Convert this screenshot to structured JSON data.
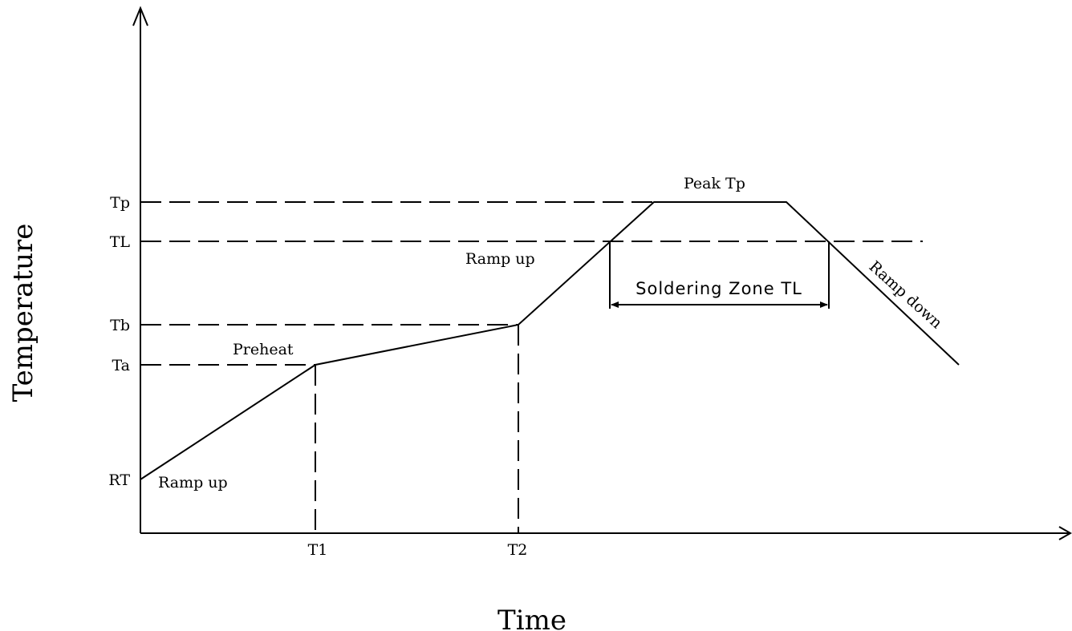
{
  "axes": {
    "y_title": "Temperature",
    "x_title": "Time"
  },
  "y_levels": [
    "Tp",
    "TL",
    "Tb",
    "Ta",
    "RT"
  ],
  "x_marks": [
    "T1",
    "T2"
  ],
  "segments": {
    "ramp_up_1": "Ramp up",
    "preheat": "Preheat",
    "ramp_up_2": "Ramp up",
    "peak": "Peak Tp",
    "ramp_down": "Ramp down"
  },
  "soldering_zone": "Soldering Zone TL"
}
